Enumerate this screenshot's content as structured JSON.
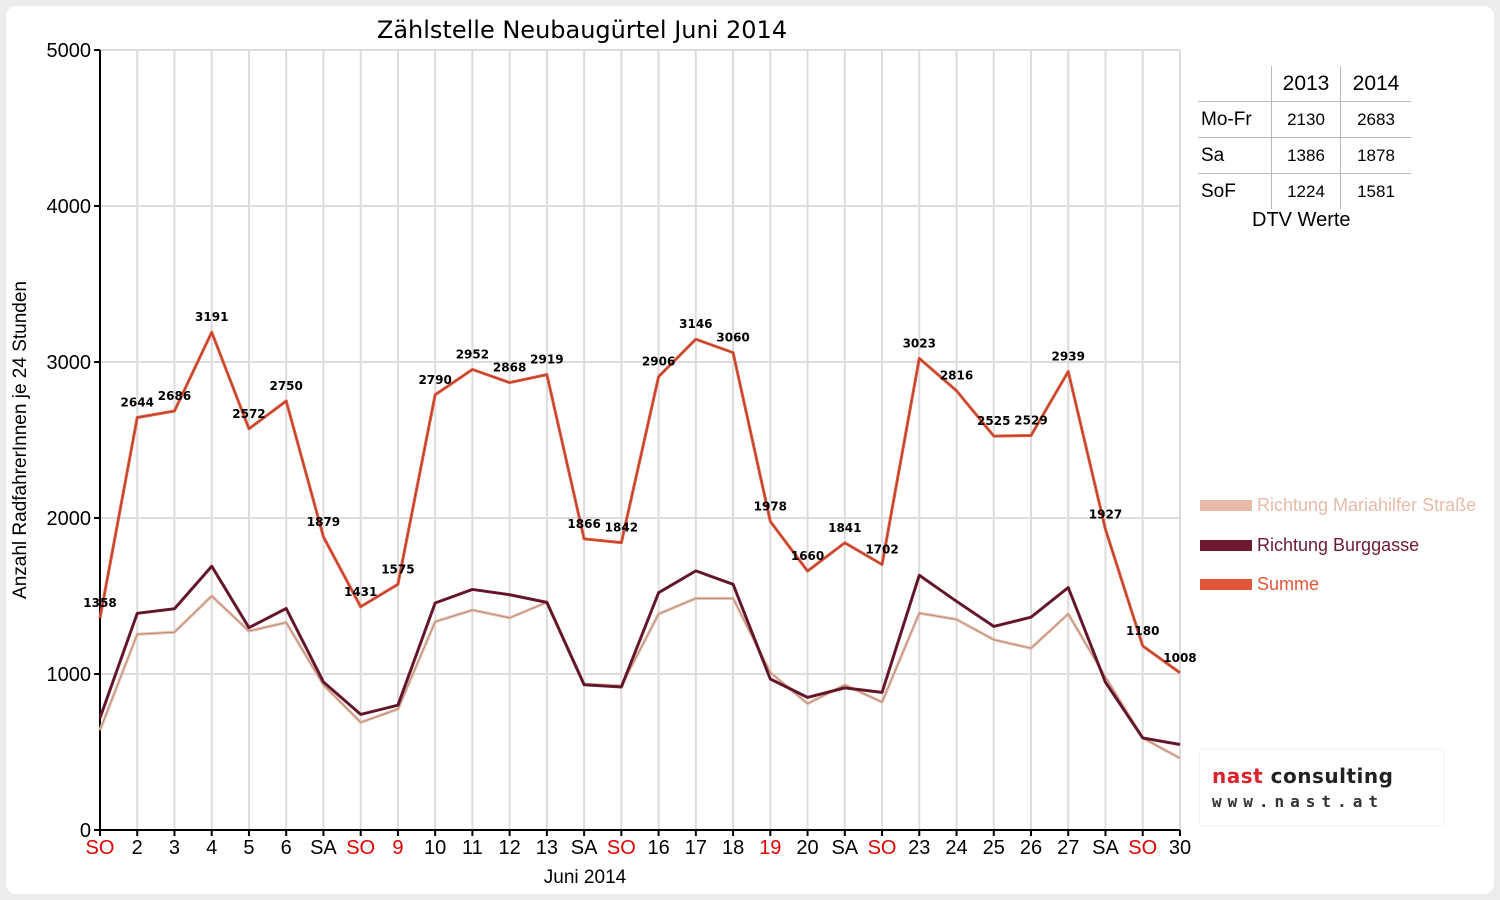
{
  "chart_data": {
    "type": "line",
    "title": "Zählstelle Neubaugürtel Juni 2014",
    "xlabel": "Juni 2014",
    "ylabel": "Anzahl RadfahrerInnen je 24 Stunden",
    "ylim": [
      0,
      5000
    ],
    "yticks": [
      0,
      1000,
      2000,
      3000,
      4000,
      5000
    ],
    "grid": true,
    "legend_position": "right",
    "categories": [
      "SO",
      "2",
      "3",
      "4",
      "5",
      "6",
      "SA",
      "SO",
      "9",
      "10",
      "11",
      "12",
      "13",
      "SA",
      "SO",
      "16",
      "17",
      "18",
      "19",
      "20",
      "SA",
      "SO",
      "23",
      "24",
      "25",
      "26",
      "27",
      "SA",
      "SO",
      "30"
    ],
    "highlight_categories": [
      true,
      false,
      false,
      false,
      false,
      false,
      false,
      true,
      true,
      false,
      false,
      false,
      false,
      false,
      true,
      false,
      false,
      false,
      true,
      false,
      false,
      true,
      false,
      false,
      false,
      false,
      false,
      false,
      true,
      false
    ],
    "series": [
      {
        "name": "Richtung Mariahilfer Straße",
        "color": "#e8bba8",
        "values": [
          640,
          1255,
          1268,
          1500,
          1275,
          1330,
          930,
          690,
          775,
          1335,
          1410,
          1360,
          1460,
          935,
          925,
          1385,
          1485,
          1485,
          1010,
          810,
          930,
          820,
          1390,
          1350,
          1220,
          1165,
          1385,
          980,
          590,
          460
        ]
      },
      {
        "name": "Richtung Burggasse",
        "color": "#6d1a30",
        "values": [
          718,
          1389,
          1418,
          1691,
          1297,
          1420,
          949,
          741,
          800,
          1455,
          1542,
          1508,
          1459,
          931,
          917,
          1521,
          1661,
          1575,
          968,
          850,
          911,
          882,
          1633,
          1466,
          1305,
          1364,
          1554,
          947,
          590,
          548
        ]
      },
      {
        "name": "Summe",
        "color": "#e2553a",
        "values": [
          1358,
          2644,
          2686,
          3191,
          2572,
          2750,
          1879,
          1431,
          1575,
          2790,
          2952,
          2868,
          2919,
          1866,
          1842,
          2906,
          3146,
          3060,
          1978,
          1660,
          1841,
          1702,
          3023,
          2816,
          2525,
          2529,
          2939,
          1927,
          1180,
          1008
        ],
        "labels": [
          "1358",
          "2644",
          "2686",
          "3191",
          "2572",
          "2750",
          "1879",
          "1431",
          "1575",
          "2790",
          "2952",
          "2868",
          "2919",
          "1866",
          "1842",
          "2906",
          "3146",
          "3060",
          "1978",
          "1660",
          "1841",
          "1702",
          "3023",
          "2816",
          "2525",
          "2529",
          "2939",
          "1927",
          "1180",
          "1008"
        ]
      }
    ]
  },
  "dtv_table": {
    "headers": [
      "2013",
      "2014"
    ],
    "rows": [
      {
        "label": "Mo-Fr",
        "v2013": "2130",
        "v2014": "2683"
      },
      {
        "label": "Sa",
        "v2013": "1386",
        "v2014": "1878"
      },
      {
        "label": "SoF",
        "v2013": "1224",
        "v2014": "1581"
      }
    ],
    "caption": "DTV Werte"
  },
  "logo": {
    "name_part1": "nast",
    "name_part2": " consulting",
    "url": "www.nast.at"
  },
  "colors": {
    "highlight_tick": "#e00000",
    "normal_tick": "#000000",
    "logo_accent": "#d9232d"
  }
}
